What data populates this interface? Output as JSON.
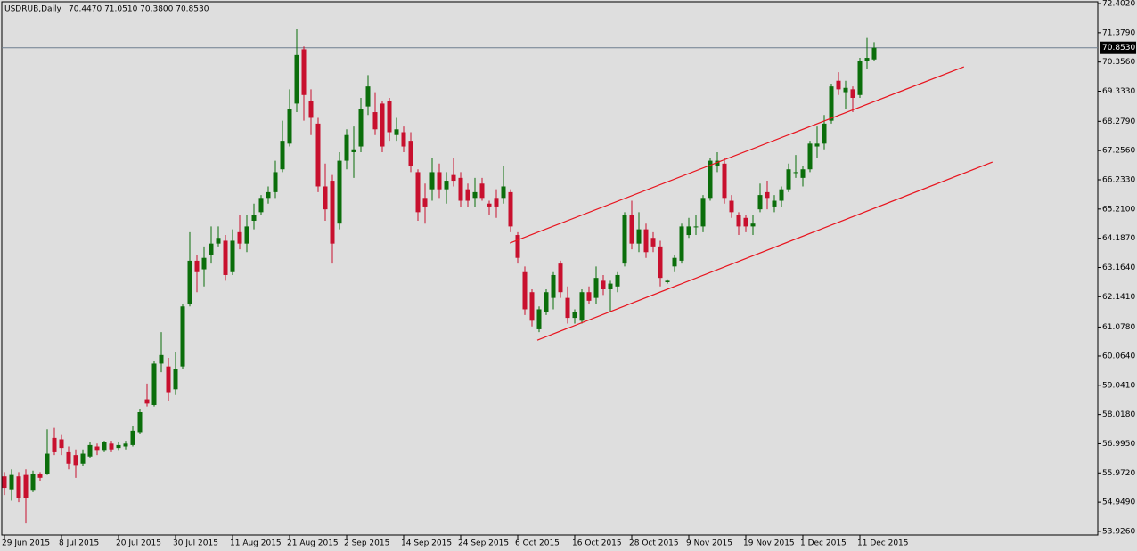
{
  "chart_data": {
    "type": "candlestick",
    "title": "USDRUB,Daily",
    "header_values": "70.4470 71.0510 70.3800 70.8530",
    "up_color": "#0b6e0b",
    "down_color": "#c8102e",
    "categories": [
      "29 Jun 2015",
      null,
      null,
      null,
      null,
      null,
      null,
      null,
      "8 Jul 2015",
      null,
      null,
      null,
      null,
      null,
      null,
      null,
      "20 Jul 2015",
      null,
      null,
      null,
      null,
      null,
      null,
      null,
      "30 Jul 2015",
      null,
      null,
      null,
      null,
      null,
      null,
      null,
      "11 Aug 2015",
      null,
      null,
      null,
      null,
      null,
      null,
      null,
      "21 Aug 2015",
      null,
      null,
      null,
      null,
      null,
      null,
      null,
      "2 Sep 2015",
      null,
      null,
      null,
      null,
      null,
      null,
      null,
      "14 Sep 2015",
      null,
      null,
      null,
      null,
      null,
      null,
      null,
      "24 Sep 2015",
      null,
      null,
      null,
      null,
      null,
      null,
      null,
      "6 Oct 2015",
      null,
      null,
      null,
      null,
      null,
      null,
      null,
      "16 Oct 2015",
      null,
      null,
      null,
      null,
      null,
      null,
      null,
      "28 Oct 2015",
      null,
      null,
      null,
      null,
      null,
      null,
      null,
      "9 Nov 2015",
      null,
      null,
      null,
      null,
      null,
      null,
      null,
      "19 Nov 2015",
      null,
      null,
      null,
      null,
      null,
      null,
      null,
      "1 Dec 2015",
      null,
      null,
      null,
      null,
      null,
      null,
      null,
      "11 Dec 2015",
      null,
      null
    ],
    "open": [
      55.85,
      55.4,
      55.85,
      55.9,
      55.35,
      55.95,
      55.95,
      57.2,
      57.15,
      56.7,
      56.6,
      56.3,
      56.55,
      56.9,
      56.75,
      57.0,
      56.85,
      56.9,
      56.95,
      57.4,
      58.55,
      58.35,
      59.8,
      59.7,
      58.9,
      59.7,
      61.9,
      63.4,
      63.1,
      63.6,
      64.0,
      64.1,
      63.0,
      64.4,
      64.0,
      64.8,
      65.1,
      65.6,
      65.8,
      66.6,
      67.5,
      68.9,
      70.8,
      69.0,
      68.2,
      66.0,
      66.2,
      64.7,
      66.9,
      67.2,
      67.4,
      68.8,
      68.6,
      68.9,
      69.0,
      67.8,
      67.9,
      67.6,
      66.5,
      65.6,
      65.9,
      66.5,
      65.9,
      66.4,
      66.3,
      65.9,
      65.6,
      66.1,
      65.4,
      65.6,
      65.6,
      65.8,
      64.3,
      63.0,
      62.3,
      61.0,
      61.6,
      62.1,
      63.3,
      62.1,
      61.4,
      61.3,
      62.3,
      62.1,
      62.7,
      62.4,
      62.5,
      63.3,
      65.0,
      64.0,
      64.5,
      64.2,
      63.9,
      62.65,
      63.2,
      63.4,
      64.3,
      64.6,
      64.6,
      65.6,
      66.7,
      66.8,
      65.5,
      65.0,
      64.9,
      64.6,
      65.2,
      65.8,
      65.3,
      65.5,
      65.9,
      66.5,
      66.3,
      66.6,
      67.4,
      67.5,
      68.3,
      69.7,
      69.3,
      69.4,
      69.2,
      70.4,
      70.447
    ],
    "high": [
      56.0,
      56.1,
      56.0,
      56.1,
      56.05,
      56.0,
      57.5,
      57.55,
      57.3,
      56.9,
      56.8,
      56.8,
      57.05,
      57.0,
      57.1,
      57.1,
      57.05,
      57.1,
      57.6,
      58.2,
      59.1,
      59.9,
      60.9,
      60.0,
      60.2,
      61.9,
      64.4,
      63.6,
      63.9,
      64.6,
      64.6,
      64.3,
      64.5,
      65.0,
      65.0,
      65.4,
      65.7,
      66.0,
      66.9,
      68.3,
      69.4,
      71.5,
      70.9,
      69.4,
      68.4,
      66.8,
      66.4,
      67.2,
      68.0,
      68.1,
      69.1,
      69.9,
      69.3,
      69.0,
      69.1,
      68.4,
      68.1,
      67.9,
      66.6,
      66.1,
      67.0,
      66.8,
      66.5,
      67.0,
      66.5,
      66.1,
      66.3,
      66.3,
      65.5,
      65.9,
      66.7,
      65.9,
      64.4,
      63.2,
      62.4,
      61.8,
      62.4,
      63.0,
      63.4,
      62.5,
      61.7,
      62.4,
      62.5,
      63.2,
      62.9,
      62.7,
      63.0,
      65.1,
      65.5,
      65.1,
      64.7,
      64.4,
      64.1,
      62.75,
      63.6,
      64.7,
      64.9,
      65.0,
      65.7,
      67.0,
      67.2,
      67.0,
      65.7,
      65.1,
      65.0,
      65.0,
      66.1,
      66.2,
      65.7,
      66.0,
      66.8,
      67.1,
      66.7,
      67.6,
      68.1,
      68.5,
      69.6,
      70.0,
      69.7,
      69.5,
      70.5,
      71.2,
      71.051
    ],
    "low": [
      55.2,
      55.0,
      54.95,
      54.2,
      55.3,
      55.7,
      55.9,
      56.6,
      56.6,
      56.1,
      55.8,
      56.2,
      56.5,
      56.6,
      56.7,
      56.7,
      56.75,
      56.8,
      56.9,
      57.35,
      58.3,
      58.3,
      59.5,
      58.5,
      58.7,
      59.6,
      61.8,
      62.3,
      62.5,
      63.3,
      63.9,
      62.7,
      62.9,
      63.8,
      63.7,
      64.5,
      65.0,
      65.4,
      65.6,
      66.5,
      67.4,
      68.6,
      68.3,
      67.8,
      65.8,
      64.8,
      63.3,
      64.5,
      66.6,
      66.3,
      67.2,
      68.5,
      67.8,
      67.2,
      67.6,
      67.6,
      67.2,
      66.5,
      64.8,
      64.7,
      65.5,
      65.6,
      65.4,
      66.0,
      65.3,
      65.3,
      65.3,
      65.5,
      65.0,
      64.9,
      65.4,
      64.4,
      63.3,
      61.5,
      61.1,
      60.9,
      61.5,
      61.7,
      62.1,
      61.2,
      61.2,
      61.2,
      61.9,
      61.9,
      62.2,
      61.6,
      62.3,
      63.2,
      63.8,
      63.7,
      63.5,
      63.7,
      62.5,
      62.6,
      63.0,
      63.3,
      64.2,
      64.3,
      64.4,
      65.5,
      66.5,
      65.4,
      64.9,
      64.3,
      64.4,
      64.3,
      65.1,
      65.2,
      65.1,
      65.3,
      65.8,
      66.3,
      66.0,
      66.5,
      67.0,
      67.3,
      68.2,
      69.2,
      68.7,
      68.6,
      69.1,
      70.1,
      70.38
    ],
    "close": [
      55.45,
      55.9,
      55.1,
      55.1,
      55.95,
      55.8,
      56.65,
      56.7,
      56.85,
      56.3,
      56.25,
      56.65,
      56.95,
      56.75,
      57.05,
      56.8,
      56.95,
      57.0,
      57.45,
      58.1,
      58.4,
      59.8,
      60.1,
      58.8,
      59.6,
      61.8,
      63.4,
      63.0,
      63.5,
      64.0,
      64.2,
      62.9,
      64.1,
      64.0,
      64.6,
      65.0,
      65.6,
      65.8,
      66.5,
      67.6,
      68.7,
      70.6,
      69.2,
      68.4,
      66.0,
      65.2,
      64.0,
      66.9,
      67.8,
      67.3,
      68.7,
      69.5,
      68.0,
      67.4,
      67.9,
      68.0,
      67.4,
      66.7,
      65.1,
      65.3,
      66.5,
      65.9,
      66.2,
      66.2,
      65.5,
      65.5,
      65.8,
      65.6,
      65.3,
      65.3,
      66.0,
      64.6,
      63.5,
      61.7,
      61.3,
      61.7,
      62.3,
      62.9,
      62.3,
      61.4,
      61.6,
      62.3,
      62.0,
      62.8,
      62.4,
      62.6,
      62.9,
      65.0,
      64.0,
      64.5,
      63.7,
      63.9,
      62.8,
      62.7,
      63.5,
      64.6,
      64.6,
      64.6,
      65.6,
      66.9,
      66.9,
      65.6,
      65.1,
      64.6,
      64.6,
      64.7,
      65.7,
      65.6,
      65.5,
      65.9,
      66.6,
      66.5,
      66.6,
      67.5,
      67.5,
      68.2,
      69.5,
      69.4,
      69.45,
      69.1,
      70.4,
      70.5,
      70.853
    ],
    "ylim": [
      53.8,
      72.465
    ],
    "yticks": [
      {
        "value": 72.402,
        "label": "72.4020"
      },
      {
        "value": 71.379,
        "label": "71.3790"
      },
      {
        "value": 70.356,
        "label": "70.3560"
      },
      {
        "value": 69.333,
        "label": "69.3330"
      },
      {
        "value": 68.279,
        "label": "68.2790"
      },
      {
        "value": 67.256,
        "label": "67.2560"
      },
      {
        "value": 66.233,
        "label": "66.2330"
      },
      {
        "value": 65.21,
        "label": "65.2100"
      },
      {
        "value": 64.187,
        "label": "64.1870"
      },
      {
        "value": 63.164,
        "label": "63.1640"
      },
      {
        "value": 62.141,
        "label": "62.1410"
      },
      {
        "value": 61.078,
        "label": "61.0780"
      },
      {
        "value": 60.064,
        "label": "60.0640"
      },
      {
        "value": 59.041,
        "label": "59.0410"
      },
      {
        "value": 58.018,
        "label": "58.0180"
      },
      {
        "value": 56.995,
        "label": "56.9950"
      },
      {
        "value": 55.972,
        "label": "55.9720"
      },
      {
        "value": 54.949,
        "label": "54.9490"
      },
      {
        "value": 53.926,
        "label": "53.9260"
      }
    ],
    "last_price": {
      "value": 70.853,
      "label": "70.8530"
    },
    "trendlines": [
      {
        "x": [
          70.9,
          134.6
        ],
        "y": [
          64.02,
          70.19
        ],
        "color": "#e8141e"
      },
      {
        "x": [
          74.75,
          138.6
        ],
        "y": [
          60.62,
          66.856
        ],
        "color": "#e8141e"
      }
    ]
  }
}
